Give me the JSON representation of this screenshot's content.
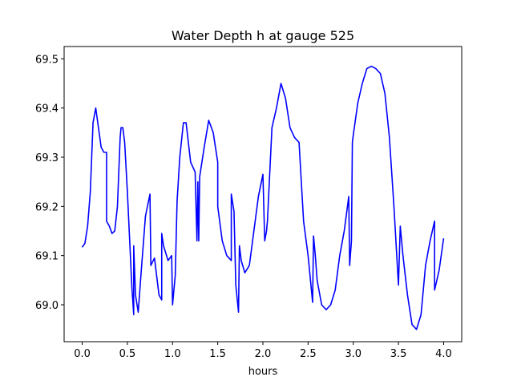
{
  "chart_data": {
    "type": "line",
    "title": "Water Depth h at gauge 525",
    "xlabel": "hours",
    "ylabel": "",
    "xlim": [
      -0.2,
      4.2
    ],
    "ylim": [
      68.925,
      69.525
    ],
    "xticks": [
      0.0,
      0.5,
      1.0,
      1.5,
      2.0,
      2.5,
      3.0,
      3.5,
      4.0
    ],
    "xtick_labels": [
      "0.0",
      "0.5",
      "1.0",
      "1.5",
      "2.0",
      "2.5",
      "3.0",
      "3.5",
      "4.0"
    ],
    "yticks": [
      69.0,
      69.1,
      69.2,
      69.3,
      69.4,
      69.5
    ],
    "ytick_labels": [
      "69.0",
      "69.1",
      "69.2",
      "69.3",
      "69.4",
      "69.5"
    ],
    "grid": false,
    "series": [
      {
        "color": "#0000ff",
        "x": [
          0.0,
          0.03,
          0.06,
          0.09,
          0.12,
          0.12,
          0.15,
          0.18,
          0.21,
          0.24,
          0.27,
          0.27,
          0.3,
          0.33,
          0.36,
          0.39,
          0.42,
          0.42,
          0.43,
          0.45,
          0.47,
          0.5,
          0.55,
          0.55,
          0.57,
          0.57,
          0.59,
          0.62,
          0.65,
          0.7,
          0.75,
          0.76,
          0.8,
          0.85,
          0.88,
          0.88,
          0.9,
          0.95,
          0.99,
          1.0,
          1.03,
          1.05,
          1.08,
          1.12,
          1.15,
          1.2,
          1.25,
          1.27,
          1.28,
          1.29,
          1.3,
          1.35,
          1.4,
          1.45,
          1.5,
          1.5,
          1.55,
          1.6,
          1.65,
          1.65,
          1.68,
          1.7,
          1.73,
          1.74,
          1.76,
          1.8,
          1.85,
          1.9,
          1.95,
          2.0,
          2.0,
          2.02,
          2.04,
          2.05,
          2.1,
          2.15,
          2.2,
          2.25,
          2.3,
          2.35,
          2.4,
          2.45,
          2.5,
          2.55,
          2.56,
          2.58,
          2.6,
          2.63,
          2.65,
          2.7,
          2.75,
          2.8,
          2.85,
          2.9,
          2.95,
          2.96,
          2.98,
          2.99,
          3.0,
          3.05,
          3.1,
          3.15,
          3.2,
          3.25,
          3.3,
          3.35,
          3.4,
          3.45,
          3.45,
          3.5,
          3.52,
          3.55,
          3.6,
          3.65,
          3.7,
          3.75,
          3.8,
          3.85,
          3.9,
          3.9,
          3.95,
          4.0
        ],
        "y": [
          69.117,
          69.125,
          69.16,
          69.23,
          69.37,
          69.37,
          69.4,
          69.36,
          69.32,
          69.31,
          69.31,
          69.17,
          69.16,
          69.145,
          69.15,
          69.2,
          69.34,
          69.34,
          69.36,
          69.36,
          69.33,
          69.23,
          69.035,
          69.035,
          68.98,
          69.12,
          69.02,
          68.985,
          69.06,
          69.18,
          69.225,
          69.08,
          69.095,
          69.02,
          69.01,
          69.145,
          69.12,
          69.09,
          69.1,
          69.0,
          69.06,
          69.21,
          69.3,
          69.37,
          69.37,
          69.29,
          69.27,
          69.13,
          69.25,
          69.13,
          69.26,
          69.32,
          69.375,
          69.35,
          69.29,
          69.2,
          69.13,
          69.1,
          69.09,
          69.225,
          69.19,
          69.04,
          68.985,
          69.12,
          69.09,
          69.065,
          69.08,
          69.15,
          69.22,
          69.265,
          69.265,
          69.13,
          69.15,
          69.17,
          69.36,
          69.4,
          69.45,
          69.42,
          69.36,
          69.34,
          69.33,
          69.17,
          69.1,
          69.005,
          69.14,
          69.1,
          69.05,
          69.02,
          69.0,
          68.99,
          69.0,
          69.03,
          69.1,
          69.15,
          69.22,
          69.08,
          69.13,
          69.33,
          69.345,
          69.41,
          69.45,
          69.48,
          69.485,
          69.48,
          69.47,
          69.43,
          69.34,
          69.2,
          69.2,
          69.04,
          69.16,
          69.1,
          69.02,
          68.96,
          68.95,
          68.98,
          69.08,
          69.13,
          69.17,
          69.03,
          69.07,
          69.135
        ]
      }
    ]
  }
}
